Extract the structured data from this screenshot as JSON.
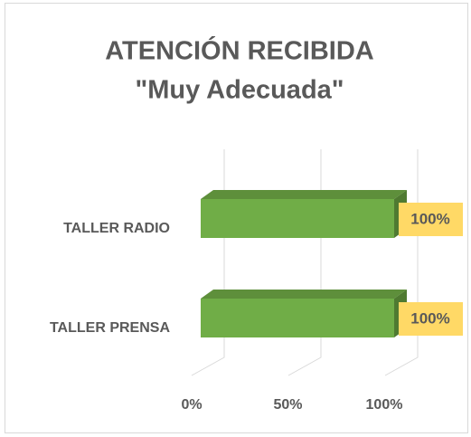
{
  "chart_data": {
    "type": "bar3d",
    "orientation": "horizontal",
    "title": "ATENCIÓN RECIBIDA",
    "subtitle": "\"Muy Adecuada\"",
    "categories": [
      "TALLER RADIO",
      "TALLER PRENSA"
    ],
    "values": [
      100,
      100
    ],
    "value_labels": [
      "100%",
      "100%"
    ],
    "color": "#70ad47",
    "label_color": "#ffd966",
    "xlim": [
      0,
      100
    ],
    "xticks": [
      {
        "value": 0,
        "label": "0%"
      },
      {
        "value": 50,
        "label": "50%"
      },
      {
        "value": 100,
        "label": "100%"
      }
    ],
    "grid": true
  }
}
